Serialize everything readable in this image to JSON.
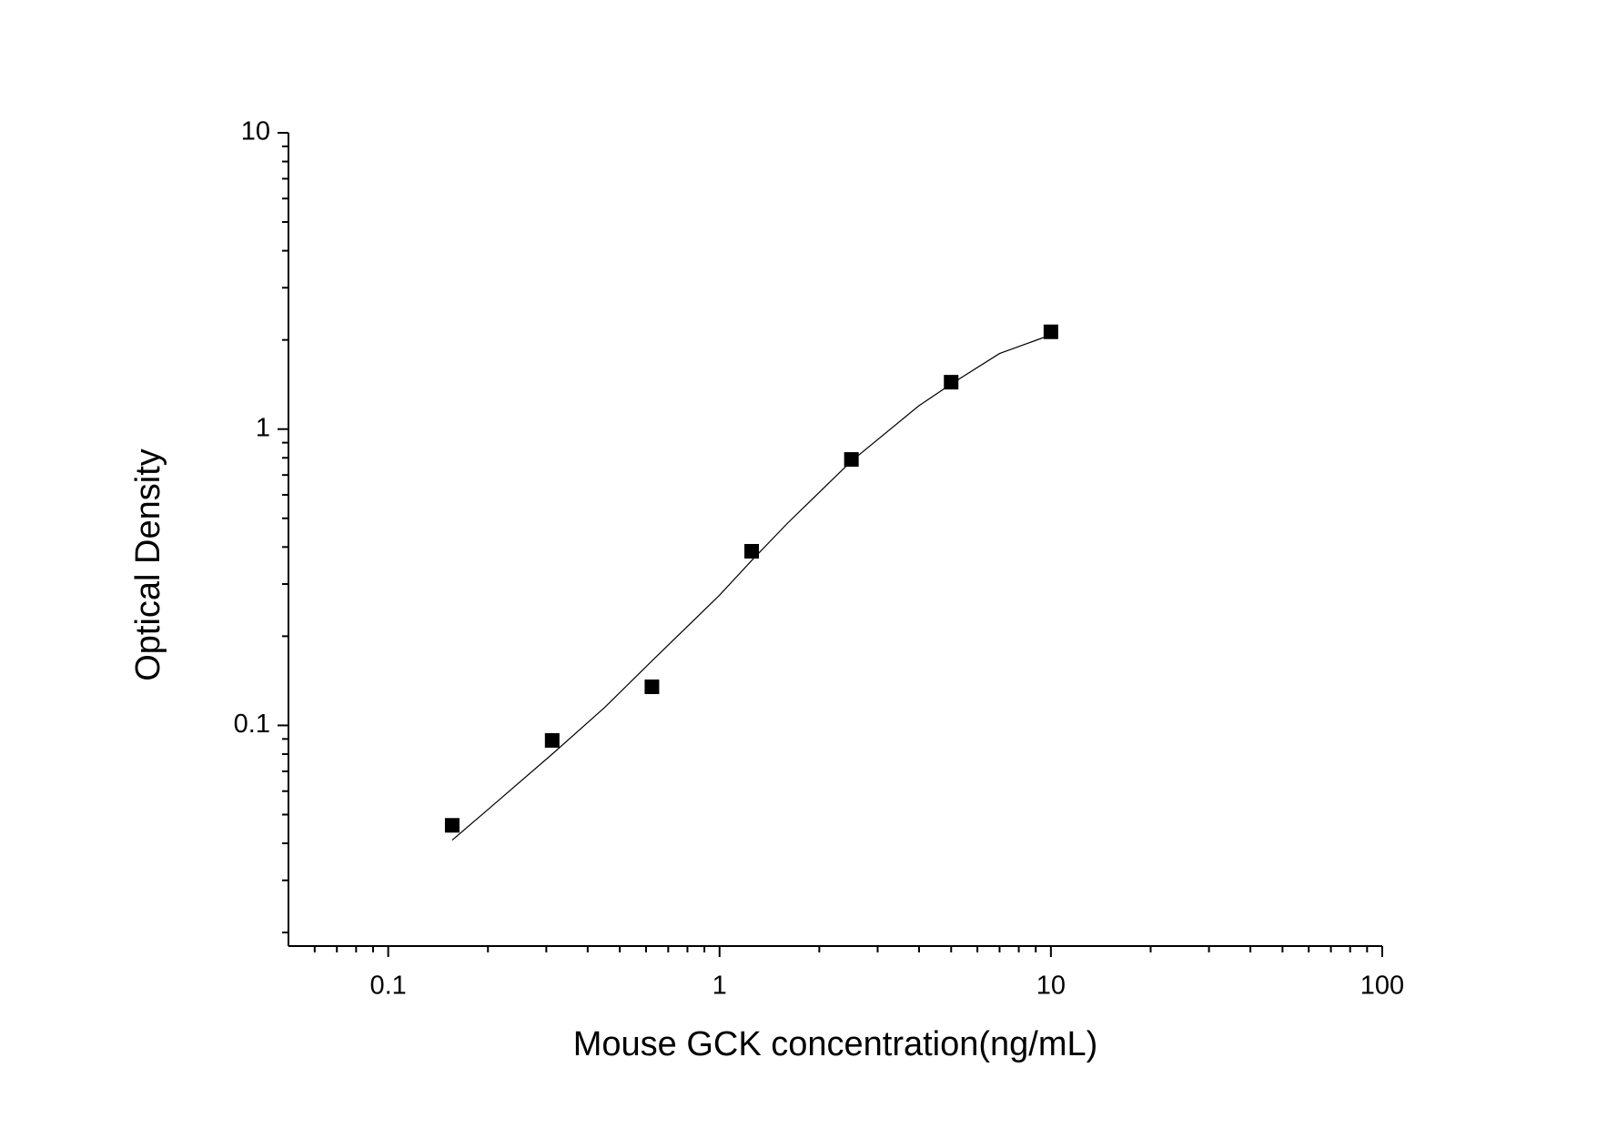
{
  "chart_data": {
    "type": "scatter",
    "x_label": "Mouse GCK concentration(ng/mL)",
    "y_label": "Optical Density",
    "xlog": true,
    "ylog": true,
    "xlim": [
      0.05,
      100
    ],
    "ylim": [
      0.018,
      10
    ],
    "xticks": [
      0.1,
      1,
      10,
      100
    ],
    "yticks": [
      0.1,
      1,
      10
    ],
    "xminorticks": [
      0.06,
      0.07,
      0.08,
      0.09,
      0.2,
      0.3,
      0.4,
      0.5,
      0.6,
      0.7,
      0.8,
      0.9,
      2,
      3,
      4,
      5,
      6,
      7,
      8,
      9,
      20,
      30,
      40,
      50,
      60,
      70,
      80,
      90
    ],
    "yminorticks": [
      0.02,
      0.03,
      0.04,
      0.05,
      0.06,
      0.07,
      0.08,
      0.09,
      0.2,
      0.3,
      0.4,
      0.5,
      0.6,
      0.7,
      0.8,
      0.9,
      2,
      3,
      4,
      5,
      6,
      7,
      8,
      9
    ],
    "series": [
      {
        "kind": "points",
        "color": "#000000",
        "x": [
          0.156,
          0.3125,
          0.625,
          1.25,
          2.5,
          5,
          10
        ],
        "values": [
          0.046,
          0.089,
          0.135,
          0.387,
          0.79,
          1.44,
          2.13
        ]
      },
      {
        "kind": "fit",
        "color": "#000000",
        "x": [
          0.156,
          0.2,
          0.3125,
          0.45,
          0.625,
          1,
          1.25,
          1.6,
          2.5,
          4,
          5,
          7,
          10
        ],
        "values": [
          0.041,
          0.052,
          0.08,
          0.115,
          0.165,
          0.275,
          0.36,
          0.48,
          0.78,
          1.2,
          1.42,
          1.8,
          2.08
        ]
      }
    ]
  }
}
